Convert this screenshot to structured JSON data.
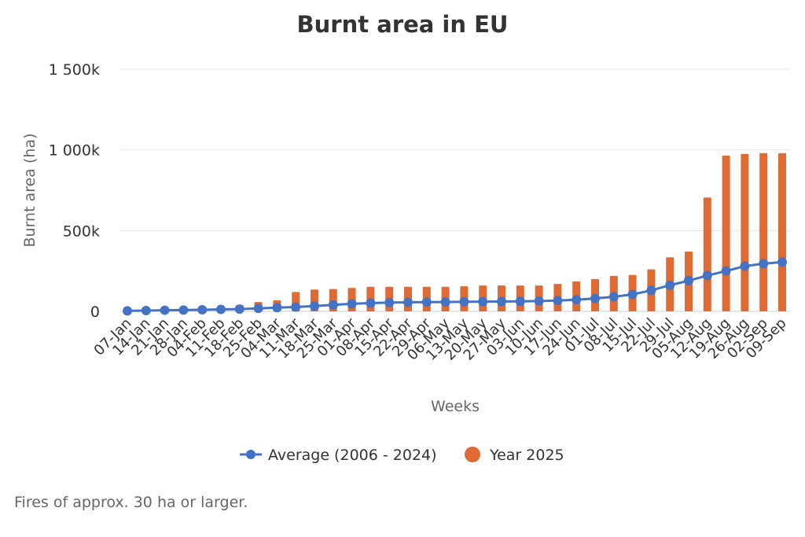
{
  "chart_data": {
    "type": "bar",
    "title": "Burnt area in EU",
    "xlabel": "Weeks",
    "ylabel": "Burnt area (ha)",
    "ylim": [
      0,
      1500000
    ],
    "yticks": [
      {
        "value": 0,
        "label": "0"
      },
      {
        "value": 500000,
        "label": "500k"
      },
      {
        "value": 1000000,
        "label": "1 000k"
      },
      {
        "value": 1500000,
        "label": "1 500k"
      }
    ],
    "grid": true,
    "legend_position": "bottom",
    "categories": [
      "07-Jan",
      "14-Jan",
      "21-Jan",
      "28-Jan",
      "04-Feb",
      "11-Feb",
      "18-Feb",
      "25-Feb",
      "04-Mar",
      "11-Mar",
      "18-Mar",
      "25-Mar",
      "01-Apr",
      "08-Apr",
      "15-Apr",
      "22-Apr",
      "29-Apr",
      "06-May",
      "13-May",
      "20-May",
      "27-May",
      "03-Jun",
      "10-Jun",
      "17-Jun",
      "24-Jun",
      "01-Jul",
      "08-Jul",
      "15-Jul",
      "22-Jul",
      "29-Jul",
      "05-Aug",
      "12-Aug",
      "19-Aug",
      "26-Aug",
      "02-Sep",
      "09-Sep"
    ],
    "series": [
      {
        "name": "Average (2006 - 2024)",
        "type": "line",
        "color": "#4472c4",
        "values": [
          3000,
          5000,
          7000,
          8000,
          10000,
          12000,
          14000,
          18000,
          23000,
          27000,
          33000,
          40000,
          47000,
          51000,
          54000,
          56000,
          57000,
          58000,
          59000,
          60000,
          61000,
          62000,
          64000,
          67000,
          72000,
          80000,
          90000,
          105000,
          130000,
          162000,
          190000,
          222000,
          250000,
          280000,
          295000,
          305000
        ]
      },
      {
        "name": "Year 2025",
        "type": "bar",
        "color": "#e06a33",
        "values": [
          5000,
          7000,
          10000,
          12000,
          15000,
          22000,
          38000,
          58000,
          68000,
          120000,
          135000,
          138000,
          145000,
          152000,
          152000,
          152000,
          152000,
          152000,
          155000,
          160000,
          160000,
          160000,
          160000,
          170000,
          185000,
          200000,
          220000,
          225000,
          260000,
          335000,
          370000,
          705000,
          965000,
          975000,
          980000,
          980000
        ]
      }
    ]
  },
  "footnote": "Fires of approx. 30 ha or larger."
}
